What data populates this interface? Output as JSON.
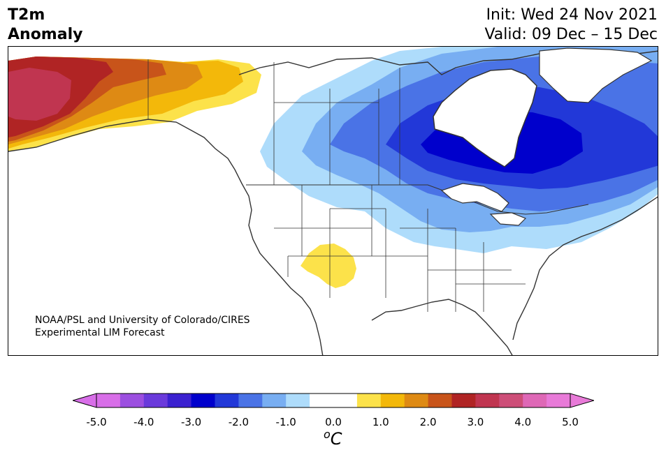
{
  "title": {
    "line1": "T2m",
    "line2": "Anomaly"
  },
  "dates": {
    "init": "Init: Wed 24 Nov 2021",
    "valid": "Valid: 09 Dec – 15 Dec"
  },
  "credit": {
    "line1": "NOAA/PSL and University of Colorado/CIRES",
    "line2": "Experimental LIM Forecast"
  },
  "colorbar": {
    "ticks": [
      "-5.0",
      "-4.0",
      "-3.0",
      "-2.0",
      "-1.0",
      "0.0",
      "1.0",
      "2.0",
      "3.0",
      "4.0",
      "5.0"
    ],
    "units_base": "C",
    "units_sup": "o",
    "colors": [
      "#d86ee8",
      "#9c4fe0",
      "#6a3adb",
      "#3b21d0",
      "#0000cc",
      "#2238d8",
      "#4a73e6",
      "#78aef2",
      "#aedcfb",
      "#ffffff",
      "#ffffff",
      "#fce24a",
      "#f3b80a",
      "#de8a14",
      "#c8541a",
      "#b02424",
      "#c03550",
      "#cd4e78",
      "#de68b6",
      "#e87ad8"
    ]
  },
  "map": {
    "region": "North America",
    "features": [
      "state-borders",
      "province-borders",
      "coastlines"
    ],
    "anomaly_regions": [
      {
        "name": "alaska-warm",
        "level": 3.5
      },
      {
        "name": "yukon-warm",
        "level": 2.0
      },
      {
        "name": "southwest-warm",
        "level": 0.8
      },
      {
        "name": "hudson-bay-cold",
        "level": -3.2
      },
      {
        "name": "quebec-cold",
        "level": -2.6
      },
      {
        "name": "prairies-cold",
        "level": -1.5
      },
      {
        "name": "great-lakes-cold",
        "level": -1.2
      },
      {
        "name": "arctic-archipelago-cold",
        "level": -1.8
      }
    ]
  }
}
